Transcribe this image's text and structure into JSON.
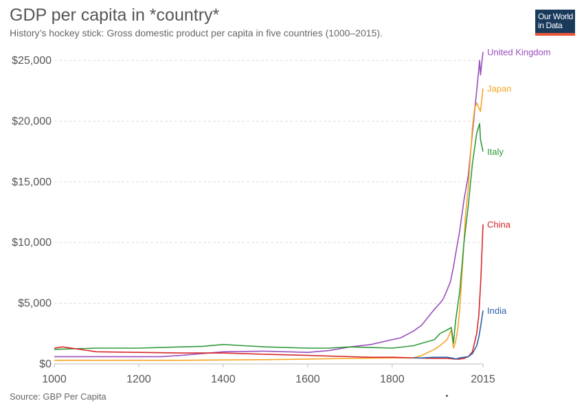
{
  "header": {
    "title": "GDP per capita in *country*",
    "subtitle": "History’s hockey stick: Gross domestic product per capita in five countries (1000–2015)."
  },
  "logo": {
    "line1": "Our World",
    "line2": "in Data"
  },
  "footer": {
    "source": "Source: GBP Per Capita"
  },
  "colors": {
    "United Kingdom": "#9b4dbd",
    "Japan": "#f5a623",
    "Italy": "#2e9a3a",
    "China": "#d62728",
    "India": "#2c5fa8",
    "grid": "#dddddd",
    "axis_text": "#555555"
  },
  "chart_data": {
    "type": "line",
    "title": "GDP per capita in *country*",
    "subtitle": "History’s hockey stick: Gross domestic product per capita in five countries (1000–2015).",
    "xlabel": "",
    "ylabel": "",
    "xlim": [
      1000,
      2015
    ],
    "ylim": [
      0,
      25000
    ],
    "x_ticks": [
      1000,
      1200,
      1400,
      1600,
      1800,
      2015
    ],
    "x_tick_labels": [
      "1000",
      "1200",
      "1400",
      "1600",
      "1800",
      "2015"
    ],
    "y_ticks": [
      0,
      5000,
      10000,
      15000,
      20000,
      25000
    ],
    "y_tick_labels": [
      "$0",
      "$5,000",
      "$10,000",
      "$15,000",
      "$20,000",
      "$25,000"
    ],
    "grid": "horizontal dashed",
    "legend": "labels at line ends (right)",
    "series": [
      {
        "name": "United Kingdom",
        "color": "#9b4dbd",
        "points": [
          [
            1000,
            600
          ],
          [
            1200,
            600
          ],
          [
            1252,
            600
          ],
          [
            1300,
            700
          ],
          [
            1400,
            1000
          ],
          [
            1500,
            1050
          ],
          [
            1600,
            950
          ],
          [
            1650,
            1100
          ],
          [
            1700,
            1400
          ],
          [
            1750,
            1600
          ],
          [
            1800,
            2000
          ],
          [
            1820,
            2150
          ],
          [
            1850,
            2700
          ],
          [
            1870,
            3200
          ],
          [
            1900,
            4500
          ],
          [
            1913,
            5000
          ],
          [
            1920,
            5300
          ],
          [
            1929,
            6000
          ],
          [
            1938,
            6800
          ],
          [
            1945,
            8000
          ],
          [
            1950,
            9000
          ],
          [
            1960,
            11000
          ],
          [
            1970,
            13500
          ],
          [
            1980,
            15500
          ],
          [
            1990,
            19000
          ],
          [
            2000,
            22500
          ],
          [
            2007,
            25000
          ],
          [
            2009,
            23800
          ],
          [
            2015,
            25700
          ]
        ]
      },
      {
        "name": "Japan",
        "color": "#f5a623",
        "points": [
          [
            1000,
            300
          ],
          [
            1200,
            300
          ],
          [
            1300,
            300
          ],
          [
            1400,
            330
          ],
          [
            1500,
            350
          ],
          [
            1600,
            400
          ],
          [
            1700,
            450
          ],
          [
            1800,
            500
          ],
          [
            1850,
            500
          ],
          [
            1870,
            700
          ],
          [
            1900,
            1200
          ],
          [
            1913,
            1500
          ],
          [
            1930,
            2000
          ],
          [
            1940,
            2800
          ],
          [
            1945,
            1300
          ],
          [
            1950,
            1800
          ],
          [
            1955,
            2800
          ],
          [
            1960,
            4500
          ],
          [
            1970,
            10000
          ],
          [
            1973,
            12000
          ],
          [
            1980,
            14500
          ],
          [
            1990,
            19500
          ],
          [
            1995,
            21000
          ],
          [
            2000,
            21500
          ],
          [
            2009,
            20800
          ],
          [
            2015,
            22700
          ]
        ]
      },
      {
        "name": "Italy",
        "color": "#2e9a3a",
        "points": [
          [
            1000,
            1200
          ],
          [
            1100,
            1300
          ],
          [
            1200,
            1300
          ],
          [
            1300,
            1400
          ],
          [
            1350,
            1450
          ],
          [
            1400,
            1600
          ],
          [
            1450,
            1500
          ],
          [
            1500,
            1400
          ],
          [
            1600,
            1300
          ],
          [
            1650,
            1300
          ],
          [
            1700,
            1400
          ],
          [
            1750,
            1350
          ],
          [
            1800,
            1300
          ],
          [
            1850,
            1500
          ],
          [
            1870,
            1700
          ],
          [
            1900,
            2000
          ],
          [
            1913,
            2500
          ],
          [
            1930,
            2800
          ],
          [
            1940,
            3000
          ],
          [
            1945,
            1700
          ],
          [
            1950,
            3500
          ],
          [
            1960,
            6000
          ],
          [
            1970,
            10000
          ],
          [
            1980,
            13000
          ],
          [
            1990,
            16500
          ],
          [
            2000,
            19000
          ],
          [
            2007,
            19800
          ],
          [
            2009,
            18500
          ],
          [
            2015,
            17500
          ]
        ]
      },
      {
        "name": "China",
        "color": "#d62728",
        "points": [
          [
            1000,
            1300
          ],
          [
            1020,
            1400
          ],
          [
            1100,
            1000
          ],
          [
            1300,
            900
          ],
          [
            1400,
            900
          ],
          [
            1500,
            800
          ],
          [
            1600,
            700
          ],
          [
            1700,
            600
          ],
          [
            1750,
            550
          ],
          [
            1800,
            550
          ],
          [
            1850,
            500
          ],
          [
            1900,
            450
          ],
          [
            1930,
            450
          ],
          [
            1950,
            400
          ],
          [
            1960,
            400
          ],
          [
            1970,
            450
          ],
          [
            1980,
            600
          ],
          [
            1990,
            1000
          ],
          [
            2000,
            2500
          ],
          [
            2005,
            4000
          ],
          [
            2010,
            7000
          ],
          [
            2015,
            11500
          ]
        ]
      },
      {
        "name": "India",
        "color": "#2c5fa8",
        "points": [
          [
            1850,
            500
          ],
          [
            1870,
            500
          ],
          [
            1900,
            550
          ],
          [
            1913,
            550
          ],
          [
            1930,
            550
          ],
          [
            1947,
            450
          ],
          [
            1950,
            400
          ],
          [
            1960,
            500
          ],
          [
            1970,
            550
          ],
          [
            1980,
            600
          ],
          [
            1990,
            850
          ],
          [
            2000,
            1500
          ],
          [
            2005,
            2200
          ],
          [
            2010,
            3200
          ],
          [
            2015,
            4400
          ]
        ]
      }
    ]
  }
}
